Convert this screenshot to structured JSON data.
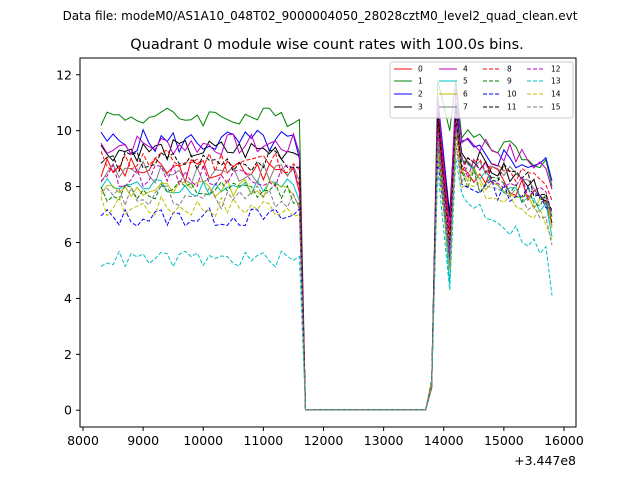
{
  "chart_data": {
    "type": "line",
    "suptitle": "Data file: modeM0/AS1A10_048T02_9000004050_28028cztM0_level2_quad_clean.evt",
    "title": "Quadrant 0 module wise count rates with 100.0s bins.",
    "xlabel": "",
    "ylabel": "",
    "x_offset_label": "+3.447e8",
    "xlim": [
      7950,
      16200
    ],
    "ylim": [
      -0.6,
      12.6
    ],
    "xticks": [
      8000,
      9000,
      10000,
      11000,
      12000,
      13000,
      14000,
      15000,
      16000
    ],
    "yticks": [
      0,
      2,
      4,
      6,
      8,
      10,
      12
    ],
    "grid": false,
    "legend_position": "top-right",
    "x_start": 8300,
    "x_step": 100,
    "gap": {
      "start": 11700,
      "end": 13700
    },
    "series": [
      {
        "name": "0",
        "color": "#ff0000",
        "dash": false,
        "base": 8.6,
        "amp": 0.45,
        "pre_end": 7.8,
        "peak1": 10.6,
        "dip": 6.4,
        "peak2": 10.3,
        "tail_end": 6.6
      },
      {
        "name": "1",
        "color": "#008000",
        "dash": false,
        "base": 10.5,
        "amp": 0.35,
        "pre_end": 10.4,
        "peak1": 11.8,
        "dip": 10.0,
        "peak2": 11.8,
        "tail_end": 8.0
      },
      {
        "name": "2",
        "color": "#0000ff",
        "dash": false,
        "base": 9.6,
        "amp": 0.45,
        "pre_end": 9.0,
        "peak1": 11.2,
        "dip": 7.0,
        "peak2": 11.0,
        "tail_end": 8.2
      },
      {
        "name": "3",
        "color": "#000000",
        "dash": false,
        "base": 9.3,
        "amp": 0.4,
        "pre_end": 9.1,
        "peak1": 10.8,
        "dip": 6.9,
        "peak2": 10.8,
        "tail_end": 6.7
      },
      {
        "name": "4",
        "color": "#bf00bf",
        "dash": false,
        "base": 9.5,
        "amp": 0.4,
        "pre_end": 9.2,
        "peak1": 11.1,
        "dip": 6.5,
        "peak2": 11.5,
        "tail_end": 7.9
      },
      {
        "name": "5",
        "color": "#00bfbf",
        "dash": false,
        "base": 8.0,
        "amp": 0.35,
        "pre_end": 7.5,
        "peak1": 10.0,
        "dip": 4.5,
        "peak2": 10.2,
        "tail_end": 6.2
      },
      {
        "name": "6",
        "color": "#bfbf00",
        "dash": false,
        "base": 7.9,
        "amp": 0.35,
        "pre_end": 7.3,
        "peak1": 9.7,
        "dip": 5.2,
        "peak2": 10.0,
        "tail_end": 6.5
      },
      {
        "name": "7",
        "color": "#808080",
        "dash": false,
        "base": 8.5,
        "amp": 0.4,
        "pre_end": 8.2,
        "peak1": 10.3,
        "dip": 5.4,
        "peak2": 10.6,
        "tail_end": 6.9
      },
      {
        "name": "8",
        "color": "#ff0000",
        "dash": true,
        "base": 8.9,
        "amp": 0.45,
        "pre_end": 8.6,
        "peak1": 10.4,
        "dip": 6.1,
        "peak2": 10.4,
        "tail_end": 7.5
      },
      {
        "name": "9",
        "color": "#008000",
        "dash": true,
        "base": 7.8,
        "amp": 0.4,
        "pre_end": 7.4,
        "peak1": 9.5,
        "dip": 5.5,
        "peak2": 9.8,
        "tail_end": 6.9
      },
      {
        "name": "10",
        "color": "#0000ff",
        "dash": true,
        "base": 6.9,
        "amp": 0.35,
        "pre_end": 7.2,
        "peak1": 9.0,
        "dip": 5.3,
        "peak2": 9.5,
        "tail_end": 7.2
      },
      {
        "name": "11",
        "color": "#000000",
        "dash": true,
        "base": 8.9,
        "amp": 0.4,
        "pre_end": 8.7,
        "peak1": 10.5,
        "dip": 5.9,
        "peak2": 10.5,
        "tail_end": 7.1
      },
      {
        "name": "12",
        "color": "#bf00bf",
        "dash": true,
        "base": 8.4,
        "amp": 0.4,
        "pre_end": 8.0,
        "peak1": 10.0,
        "dip": 5.6,
        "peak2": 10.3,
        "tail_end": 7.0
      },
      {
        "name": "13",
        "color": "#00bfbf",
        "dash": true,
        "base": 5.4,
        "amp": 0.3,
        "pre_end": 5.5,
        "peak1": 8.6,
        "dip": 4.3,
        "peak2": 9.0,
        "tail_end": 4.1
      },
      {
        "name": "14",
        "color": "#bfbf00",
        "dash": true,
        "base": 7.3,
        "amp": 0.4,
        "pre_end": 7.0,
        "peak1": 9.2,
        "dip": 5.0,
        "peak2": 9.5,
        "tail_end": 6.1
      },
      {
        "name": "15",
        "color": "#808080",
        "dash": true,
        "base": 7.6,
        "amp": 0.45,
        "pre_end": 7.2,
        "peak1": 9.6,
        "dip": 5.1,
        "peak2": 10.0,
        "tail_end": 5.9
      }
    ]
  }
}
